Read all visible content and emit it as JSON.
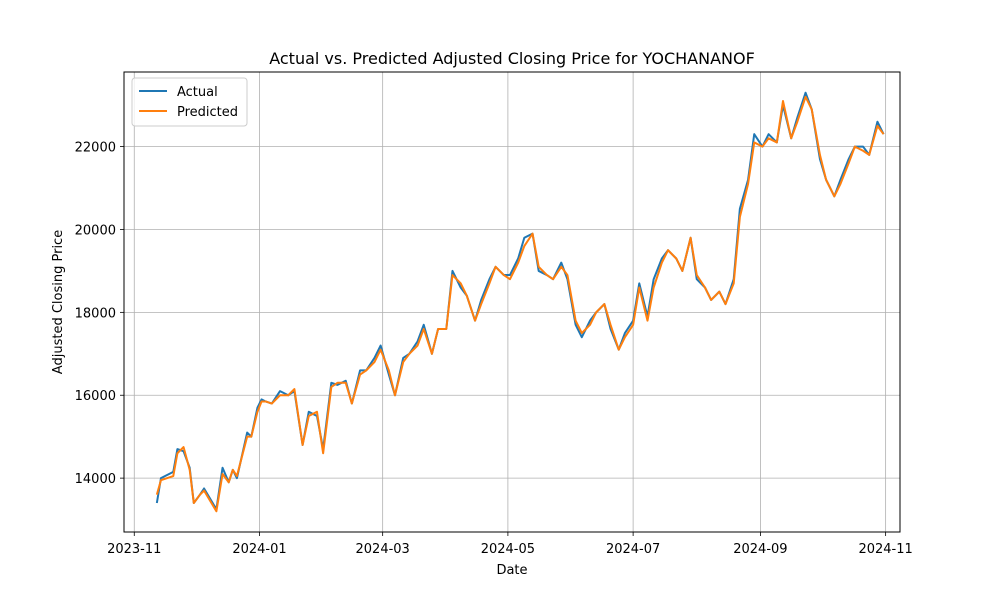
{
  "chart_data": {
    "type": "line",
    "title": "Actual vs. Predicted Adjusted Closing Price for YOCHANANOF",
    "xlabel": "Date",
    "ylabel": "Adjusted Closing Price",
    "x_ticks": [
      "2023-11",
      "2024-01",
      "2024-03",
      "2024-05",
      "2024-07",
      "2024-09",
      "2024-11"
    ],
    "y_ticks": [
      14000,
      16000,
      18000,
      20000,
      22000
    ],
    "xlim": [
      "2023-10-27",
      "2024-11-08"
    ],
    "ylim": [
      12700,
      23800
    ],
    "grid": true,
    "legend_position": "top-left",
    "colors": {
      "Actual": "#1f77b4",
      "Predicted": "#ff7f0e"
    },
    "dates": [
      "2023-11-12",
      "2023-11-14",
      "2023-11-20",
      "2023-11-22",
      "2023-11-25",
      "2023-11-28",
      "2023-11-30",
      "2023-12-03",
      "2023-12-05",
      "2023-12-11",
      "2023-12-14",
      "2023-12-17",
      "2023-12-19",
      "2023-12-21",
      "2023-12-26",
      "2023-12-28",
      "2023-12-31",
      "2024-01-02",
      "2024-01-04",
      "2024-01-07",
      "2024-01-11",
      "2024-01-15",
      "2024-01-18",
      "2024-01-22",
      "2024-01-25",
      "2024-01-29",
      "2024-02-01",
      "2024-02-05",
      "2024-02-08",
      "2024-02-12",
      "2024-02-15",
      "2024-02-19",
      "2024-02-22",
      "2024-02-26",
      "2024-02-29",
      "2024-03-04",
      "2024-03-07",
      "2024-03-11",
      "2024-03-14",
      "2024-03-18",
      "2024-03-21",
      "2024-03-25",
      "2024-03-28",
      "2024-04-01",
      "2024-04-04",
      "2024-04-08",
      "2024-04-11",
      "2024-04-15",
      "2024-04-18",
      "2024-04-22",
      "2024-04-25",
      "2024-04-29",
      "2024-05-02",
      "2024-05-06",
      "2024-05-09",
      "2024-05-13",
      "2024-05-16",
      "2024-05-20",
      "2024-05-23",
      "2024-05-27",
      "2024-05-30",
      "2024-06-03",
      "2024-06-06",
      "2024-06-10",
      "2024-06-13",
      "2024-06-17",
      "2024-06-20",
      "2024-06-24",
      "2024-06-27",
      "2024-07-01",
      "2024-07-04",
      "2024-07-08",
      "2024-07-11",
      "2024-07-15",
      "2024-07-18",
      "2024-07-22",
      "2024-07-25",
      "2024-07-29",
      "2024-08-01",
      "2024-08-05",
      "2024-08-08",
      "2024-08-12",
      "2024-08-15",
      "2024-08-19",
      "2024-08-22",
      "2024-08-26",
      "2024-08-29",
      "2024-09-02",
      "2024-09-05",
      "2024-09-09",
      "2024-09-12",
      "2024-09-16",
      "2024-09-19",
      "2024-09-23",
      "2024-09-26",
      "2024-09-30",
      "2024-10-03",
      "2024-10-07",
      "2024-10-10",
      "2024-10-14",
      "2024-10-17",
      "2024-10-21",
      "2024-10-24",
      "2024-10-28",
      "2024-10-31"
    ],
    "series": [
      {
        "name": "Actual",
        "values": [
          13400,
          14000,
          14150,
          14700,
          14650,
          14250,
          13400,
          13600,
          13750,
          13250,
          14250,
          13900,
          14200,
          14000,
          15100,
          15000,
          15700,
          15900,
          15850,
          15800,
          16100,
          16000,
          16100,
          14800,
          15600,
          15500,
          14700,
          16300,
          16250,
          16350,
          15800,
          16600,
          16600,
          16900,
          17200,
          16500,
          16000,
          16900,
          17000,
          17300,
          17700,
          17000,
          17600,
          17600,
          19000,
          18600,
          18400,
          17800,
          18300,
          18800,
          19100,
          18900,
          18900,
          19300,
          19800,
          19900,
          19000,
          18900,
          18800,
          19200,
          18800,
          17700,
          17400,
          17800,
          18000,
          18200,
          17600,
          17100,
          17500,
          17800,
          18700,
          17900,
          18800,
          19300,
          19500,
          19300,
          19000,
          19800,
          18800,
          18600,
          18300,
          18500,
          18200,
          18800,
          20500,
          21200,
          22300,
          22000,
          22300,
          22100,
          23000,
          22200,
          22700,
          23300,
          22900,
          21700,
          21200,
          20800,
          21200,
          21700,
          22000,
          22000,
          21800,
          22600,
          22300
        ]
      },
      {
        "name": "Predicted",
        "values": [
          13600,
          13950,
          14050,
          14600,
          14750,
          14200,
          13400,
          13600,
          13700,
          13200,
          14100,
          13900,
          14200,
          14050,
          15000,
          15000,
          15600,
          15850,
          15850,
          15800,
          16000,
          16000,
          16150,
          14800,
          15500,
          15600,
          14600,
          16200,
          16300,
          16300,
          15800,
          16500,
          16600,
          16800,
          17100,
          16600,
          16000,
          16800,
          17000,
          17200,
          17600,
          17000,
          17600,
          17600,
          18900,
          18700,
          18400,
          17800,
          18200,
          18700,
          19100,
          18900,
          18800,
          19200,
          19600,
          19900,
          19100,
          18900,
          18800,
          19100,
          18900,
          17800,
          17500,
          17700,
          18000,
          18200,
          17700,
          17100,
          17400,
          17700,
          18600,
          17800,
          18600,
          19200,
          19500,
          19300,
          19000,
          19800,
          18900,
          18600,
          18300,
          18500,
          18200,
          18700,
          20300,
          21100,
          22100,
          22000,
          22200,
          22100,
          23100,
          22200,
          22600,
          23200,
          22900,
          21800,
          21200,
          20800,
          21100,
          21600,
          22000,
          21900,
          21800,
          22500,
          22300
        ]
      }
    ]
  }
}
